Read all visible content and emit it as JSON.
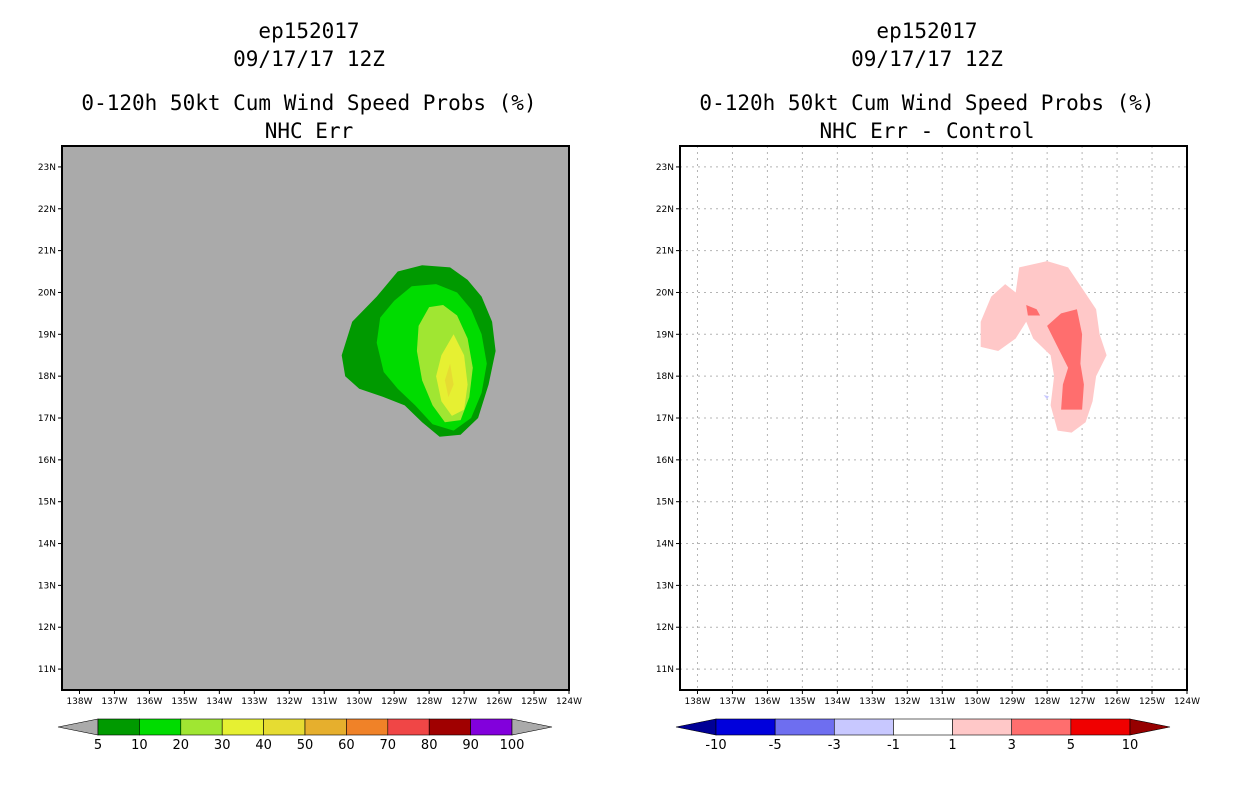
{
  "chart_data": [
    {
      "type": "heatmap",
      "storm_id": "ep152017",
      "date_label": "09/17/17 12Z",
      "title": "0-120h 50kt Cum Wind Speed Probs (%)",
      "subtitle": "NHC Err",
      "xlabel": "",
      "ylabel": "",
      "xlim": [
        -138.5,
        -124
      ],
      "ylim": [
        10.5,
        23.5
      ],
      "grid": false,
      "background_color": "#aaaaaa",
      "x_ticks": [
        -138,
        -137,
        -136,
        -135,
        -134,
        -133,
        -132,
        -131,
        -130,
        -129,
        -128,
        -127,
        -126,
        -125,
        -124
      ],
      "x_tick_labels": [
        "138W",
        "137W",
        "136W",
        "135W",
        "134W",
        "133W",
        "132W",
        "131W",
        "130W",
        "129W",
        "128W",
        "127W",
        "126W",
        "125W",
        "124W"
      ],
      "y_ticks": [
        11,
        12,
        13,
        14,
        15,
        16,
        17,
        18,
        19,
        20,
        21,
        22,
        23
      ],
      "y_tick_labels": [
        "11N",
        "12N",
        "13N",
        "14N",
        "15N",
        "16N",
        "17N",
        "18N",
        "19N",
        "20N",
        "21N",
        "22N",
        "23N"
      ],
      "colorbar": {
        "labels": [
          "5",
          "10",
          "20",
          "30",
          "40",
          "50",
          "60",
          "70",
          "80",
          "90",
          "100"
        ],
        "colors": [
          "#009a00",
          "#00dc00",
          "#a0e632",
          "#e6f032",
          "#e6dc32",
          "#e6af2d",
          "#f08228",
          "#f04646",
          "#a00000",
          "#8200dc"
        ],
        "end_colors": [
          "#aaaaaa",
          "#aaaaaa"
        ]
      },
      "contours": [
        {
          "level": "5-10",
          "color": "#009a00",
          "points": [
            [
              -130.5,
              18.5
            ],
            [
              -130.2,
              19.3
            ],
            [
              -129.5,
              19.9
            ],
            [
              -128.9,
              20.5
            ],
            [
              -128.2,
              20.65
            ],
            [
              -127.4,
              20.6
            ],
            [
              -126.9,
              20.3
            ],
            [
              -126.5,
              19.9
            ],
            [
              -126.2,
              19.3
            ],
            [
              -126.1,
              18.6
            ],
            [
              -126.3,
              17.8
            ],
            [
              -126.6,
              17.0
            ],
            [
              -127.1,
              16.6
            ],
            [
              -127.7,
              16.55
            ],
            [
              -128.2,
              16.9
            ],
            [
              -128.7,
              17.3
            ],
            [
              -129.3,
              17.5
            ],
            [
              -130.0,
              17.7
            ],
            [
              -130.4,
              18.0
            ]
          ]
        },
        {
          "level": "10-20",
          "color": "#00dc00",
          "points": [
            [
              -129.5,
              18.8
            ],
            [
              -129.4,
              19.4
            ],
            [
              -129.0,
              19.8
            ],
            [
              -128.5,
              20.15
            ],
            [
              -127.8,
              20.2
            ],
            [
              -127.2,
              20.0
            ],
            [
              -126.8,
              19.6
            ],
            [
              -126.5,
              19.0
            ],
            [
              -126.35,
              18.3
            ],
            [
              -126.5,
              17.6
            ],
            [
              -126.8,
              17.0
            ],
            [
              -127.3,
              16.7
            ],
            [
              -127.9,
              16.85
            ],
            [
              -128.4,
              17.3
            ],
            [
              -128.9,
              17.7
            ],
            [
              -129.3,
              18.1
            ]
          ]
        },
        {
          "level": "20-30",
          "color": "#a0e632",
          "points": [
            [
              -128.3,
              19.2
            ],
            [
              -128.0,
              19.65
            ],
            [
              -127.6,
              19.7
            ],
            [
              -127.2,
              19.45
            ],
            [
              -126.9,
              18.9
            ],
            [
              -126.75,
              18.2
            ],
            [
              -126.85,
              17.5
            ],
            [
              -127.1,
              16.95
            ],
            [
              -127.55,
              16.9
            ],
            [
              -127.9,
              17.3
            ],
            [
              -128.2,
              17.9
            ],
            [
              -128.35,
              18.6
            ]
          ]
        },
        {
          "level": "30-40",
          "color": "#e6f032",
          "points": [
            [
              -127.3,
              19.0
            ],
            [
              -127.0,
              18.5
            ],
            [
              -126.9,
              17.8
            ],
            [
              -127.0,
              17.2
            ],
            [
              -127.35,
              17.05
            ],
            [
              -127.65,
              17.4
            ],
            [
              -127.8,
              18.0
            ],
            [
              -127.65,
              18.5
            ]
          ]
        },
        {
          "level": "40-50",
          "color": "#e6dc32",
          "points": [
            [
              -127.4,
              18.3
            ],
            [
              -127.3,
              17.8
            ],
            [
              -127.45,
              17.5
            ],
            [
              -127.55,
              17.9
            ]
          ]
        }
      ]
    },
    {
      "type": "heatmap",
      "storm_id": "ep152017",
      "date_label": "09/17/17 12Z",
      "title": "0-120h 50kt Cum Wind Speed Probs (%)",
      "subtitle": "NHC Err - Control",
      "xlabel": "",
      "ylabel": "",
      "xlim": [
        -138.5,
        -124
      ],
      "ylim": [
        10.5,
        23.5
      ],
      "grid": true,
      "background_color": "#ffffff",
      "x_ticks": [
        -138,
        -137,
        -136,
        -135,
        -134,
        -133,
        -132,
        -131,
        -130,
        -129,
        -128,
        -127,
        -126,
        -125,
        -124
      ],
      "x_tick_labels": [
        "138W",
        "137W",
        "136W",
        "135W",
        "134W",
        "133W",
        "132W",
        "131W",
        "130W",
        "129W",
        "128W",
        "127W",
        "126W",
        "125W",
        "124W"
      ],
      "y_ticks": [
        11,
        12,
        13,
        14,
        15,
        16,
        17,
        18,
        19,
        20,
        21,
        22,
        23
      ],
      "y_tick_labels": [
        "11N",
        "12N",
        "13N",
        "14N",
        "15N",
        "16N",
        "17N",
        "18N",
        "19N",
        "20N",
        "21N",
        "22N",
        "23N"
      ],
      "colorbar": {
        "labels": [
          "-10",
          "-5",
          "-3",
          "-1",
          "1",
          "3",
          "5",
          "10"
        ],
        "colors": [
          "#0000dc",
          "#6e6ef0",
          "#c8c8ff",
          "#ffffff",
          "#ffc8c8",
          "#ff6e6e",
          "#f00000"
        ],
        "end_colors": [
          "#000096",
          "#960000"
        ]
      },
      "contours": [
        {
          "level": "1-3",
          "color": "#ffc8c8",
          "points": [
            [
              -129.9,
              19.3
            ],
            [
              -129.6,
              19.9
            ],
            [
              -129.2,
              20.2
            ],
            [
              -128.9,
              20.0
            ],
            [
              -128.8,
              20.6
            ],
            [
              -128.0,
              20.75
            ],
            [
              -127.4,
              20.6
            ],
            [
              -127.0,
              20.1
            ],
            [
              -126.6,
              19.6
            ],
            [
              -126.5,
              19.0
            ],
            [
              -126.3,
              18.5
            ],
            [
              -126.6,
              18.0
            ],
            [
              -126.7,
              17.4
            ],
            [
              -126.9,
              16.9
            ],
            [
              -127.3,
              16.65
            ],
            [
              -127.7,
              16.7
            ],
            [
              -127.9,
              17.3
            ],
            [
              -127.8,
              18.0
            ],
            [
              -127.9,
              18.5
            ],
            [
              -128.4,
              18.9
            ],
            [
              -128.6,
              19.3
            ],
            [
              -128.9,
              18.9
            ],
            [
              -129.4,
              18.6
            ],
            [
              -129.9,
              18.7
            ]
          ]
        },
        {
          "level": "3-5",
          "color": "#ff6e6e",
          "points": [
            [
              -128.0,
              19.2
            ],
            [
              -127.6,
              19.5
            ],
            [
              -127.15,
              19.6
            ],
            [
              -127.0,
              19.0
            ],
            [
              -127.05,
              18.3
            ],
            [
              -126.95,
              17.8
            ],
            [
              -127.0,
              17.2
            ],
            [
              -127.6,
              17.2
            ],
            [
              -127.55,
              17.8
            ],
            [
              -127.4,
              18.2
            ],
            [
              -127.7,
              18.7
            ]
          ]
        },
        {
          "level": "3-5",
          "color": "#ff6e6e",
          "points": [
            [
              -128.6,
              19.7
            ],
            [
              -128.3,
              19.6
            ],
            [
              -128.2,
              19.45
            ],
            [
              -128.55,
              19.45
            ]
          ]
        },
        {
          "level": "-3--1",
          "color": "#c8c8ff",
          "points": [
            [
              -128.1,
              17.55
            ],
            [
              -128.0,
              17.45
            ],
            [
              -127.95,
              17.52
            ]
          ]
        }
      ]
    }
  ]
}
